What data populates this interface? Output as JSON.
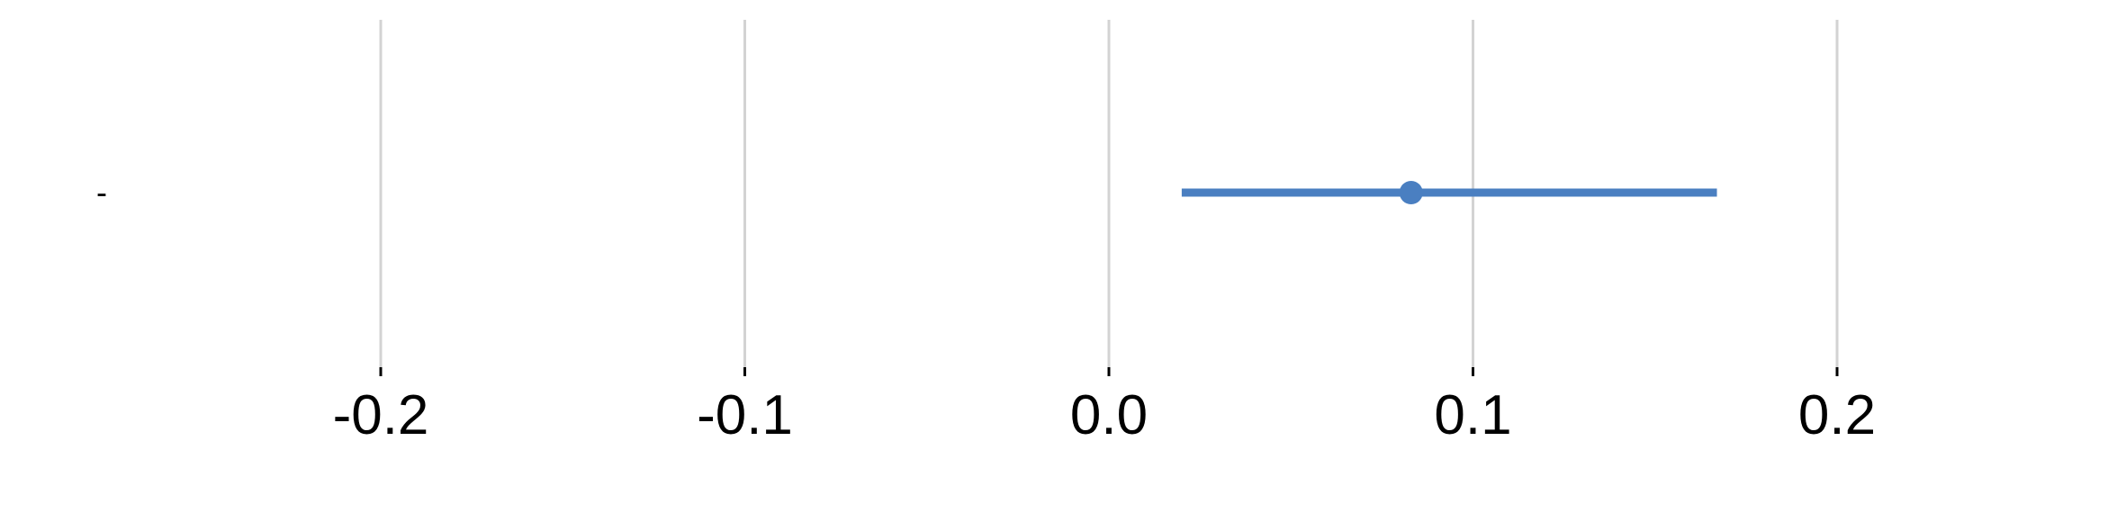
{
  "chart_data": {
    "type": "forest",
    "title": "",
    "xlabel": "",
    "ylabel": "",
    "rows": [
      {
        "label": "-",
        "estimate": 0.083,
        "lower": 0.02,
        "upper": 0.167
      }
    ],
    "xlim": [
      -0.305,
      0.305
    ],
    "xticks": [
      -0.2,
      -0.1,
      0.0,
      0.1,
      0.2
    ],
    "xtick_labels": [
      "-0.2",
      "-0.1",
      "0.0",
      "0.1",
      "0.2"
    ],
    "grid": true,
    "colors": {
      "series": "#4a7fc1",
      "grid": "#d3d3d3",
      "tick": "#000000"
    }
  }
}
